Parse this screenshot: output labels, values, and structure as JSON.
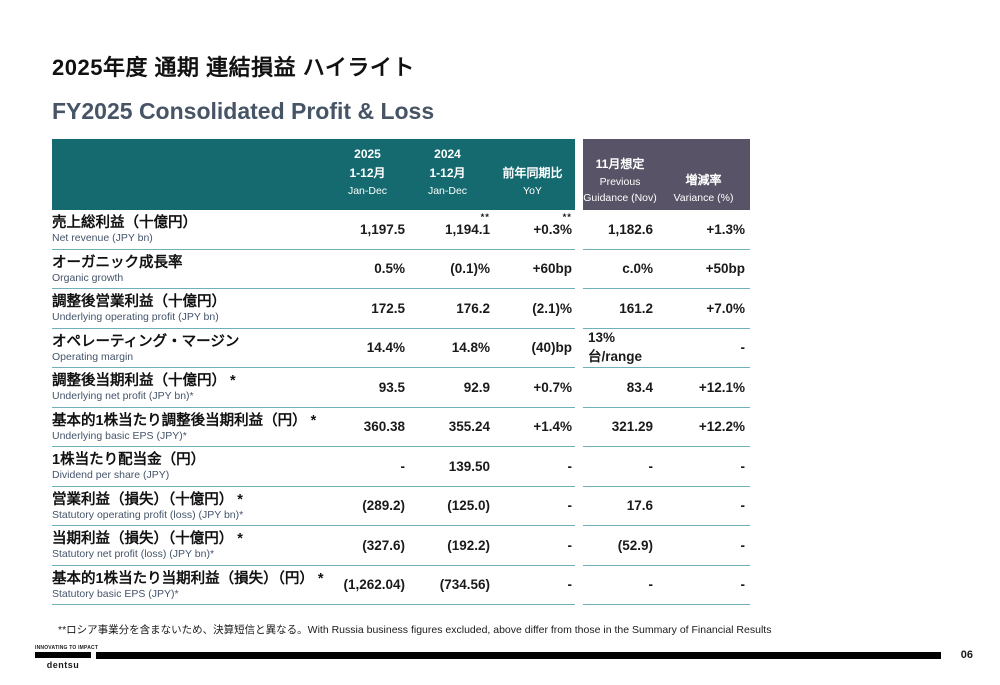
{
  "slide": {
    "title_ja": "2025年度 通期 連結損益 ハイライト",
    "title_en": "FY2025 Consolidated Profit & Loss",
    "footnote": "**ロシア事業分を含まないため、決算短信と異なる。With Russia business figures excluded, above differ from those in the Summary of Financial Results",
    "page_number": "06",
    "brand": {
      "tagline": "INNOVATING TO IMPACT",
      "name": "dentsu"
    }
  },
  "colors": {
    "header_left_bg": "#156A6F",
    "header_right_bg": "#585366",
    "separator_line": "#6FB0BA",
    "title_en_color": "#475466",
    "label_en_color": "#44546A"
  },
  "table": {
    "header": {
      "col_2025": {
        "line1": "2025",
        "line2": "1-12月",
        "line3": "Jan-Dec"
      },
      "col_2024": {
        "line1": "2024",
        "line2": "1-12月",
        "line3": "Jan-Dec"
      },
      "col_yoy": {
        "line1": "前年同期比",
        "line2": "YoY"
      },
      "col_guidance": {
        "line1": "11月想定",
        "line2": "Previous",
        "line3": "Guidance (Nov)"
      },
      "col_variance": {
        "line1": "増減率",
        "line2": "Variance (%)"
      }
    },
    "rows": [
      {
        "label_ja": "売上総利益（十億円）",
        "label_en": "Net revenue (JPY bn)",
        "v2025": "1,197.5",
        "v2024": "1,194.1",
        "sup_2024": "**",
        "yoy": "+0.3%",
        "sup_yoy": "**",
        "guidance": "1,182.6",
        "variance": "+1.3%"
      },
      {
        "label_ja": "オーガニック成長率",
        "label_en": "Organic growth",
        "v2025": "0.5%",
        "v2024": "(0.1)%",
        "yoy": "+60bp",
        "guidance": "c.0%",
        "variance": "+50bp"
      },
      {
        "label_ja": "調整後営業利益（十億円）",
        "label_en": "Underlying operating profit (JPY bn)",
        "v2025": "172.5",
        "v2024": "176.2",
        "yoy": "(2.1)%",
        "guidance": "161.2",
        "variance": "+7.0%"
      },
      {
        "label_ja": "オペレーティング・マージン",
        "label_en": "Operating margin",
        "v2025": "14.4%",
        "v2024": "14.8%",
        "yoy": "(40)bp",
        "guidance": "13%台/range",
        "guidance_align": "left",
        "variance": "-"
      },
      {
        "label_ja": "調整後当期利益（十億円） *",
        "label_en": "Underlying net profit (JPY bn)*",
        "v2025": "93.5",
        "v2024": "92.9",
        "yoy": "+0.7%",
        "guidance": "83.4",
        "variance": "+12.1%"
      },
      {
        "label_ja": "基本的1株当たり調整後当期利益（円） *",
        "label_en": "Underlying basic EPS (JPY)*",
        "v2025": "360.38",
        "v2024": "355.24",
        "yoy": "+1.4%",
        "guidance": "321.29",
        "variance": "+12.2%"
      },
      {
        "label_ja": "1株当たり配当金（円）",
        "label_en": "Dividend per share (JPY)",
        "v2025": "-",
        "v2024": "139.50",
        "yoy": "-",
        "guidance": "-",
        "variance": "-"
      },
      {
        "label_ja": "営業利益（損失）（十億円） *",
        "label_en": "Statutory operating profit (loss) (JPY bn)*",
        "v2025": "(289.2)",
        "v2024": "(125.0)",
        "yoy": "-",
        "guidance": "17.6",
        "variance": "-"
      },
      {
        "label_ja": "当期利益（損失）（十億円） *",
        "label_en": "Statutory net profit (loss) (JPY bn)*",
        "v2025": "(327.6)",
        "v2024": "(192.2)",
        "yoy": "-",
        "guidance": "(52.9)",
        "variance": "-"
      },
      {
        "label_ja": "基本的1株当たり当期利益（損失）（円） *",
        "label_en": "Statutory basic EPS (JPY)*",
        "v2025": "(1,262.04)",
        "v2024": "(734.56)",
        "yoy": "-",
        "guidance": "-",
        "variance": "-"
      }
    ]
  }
}
